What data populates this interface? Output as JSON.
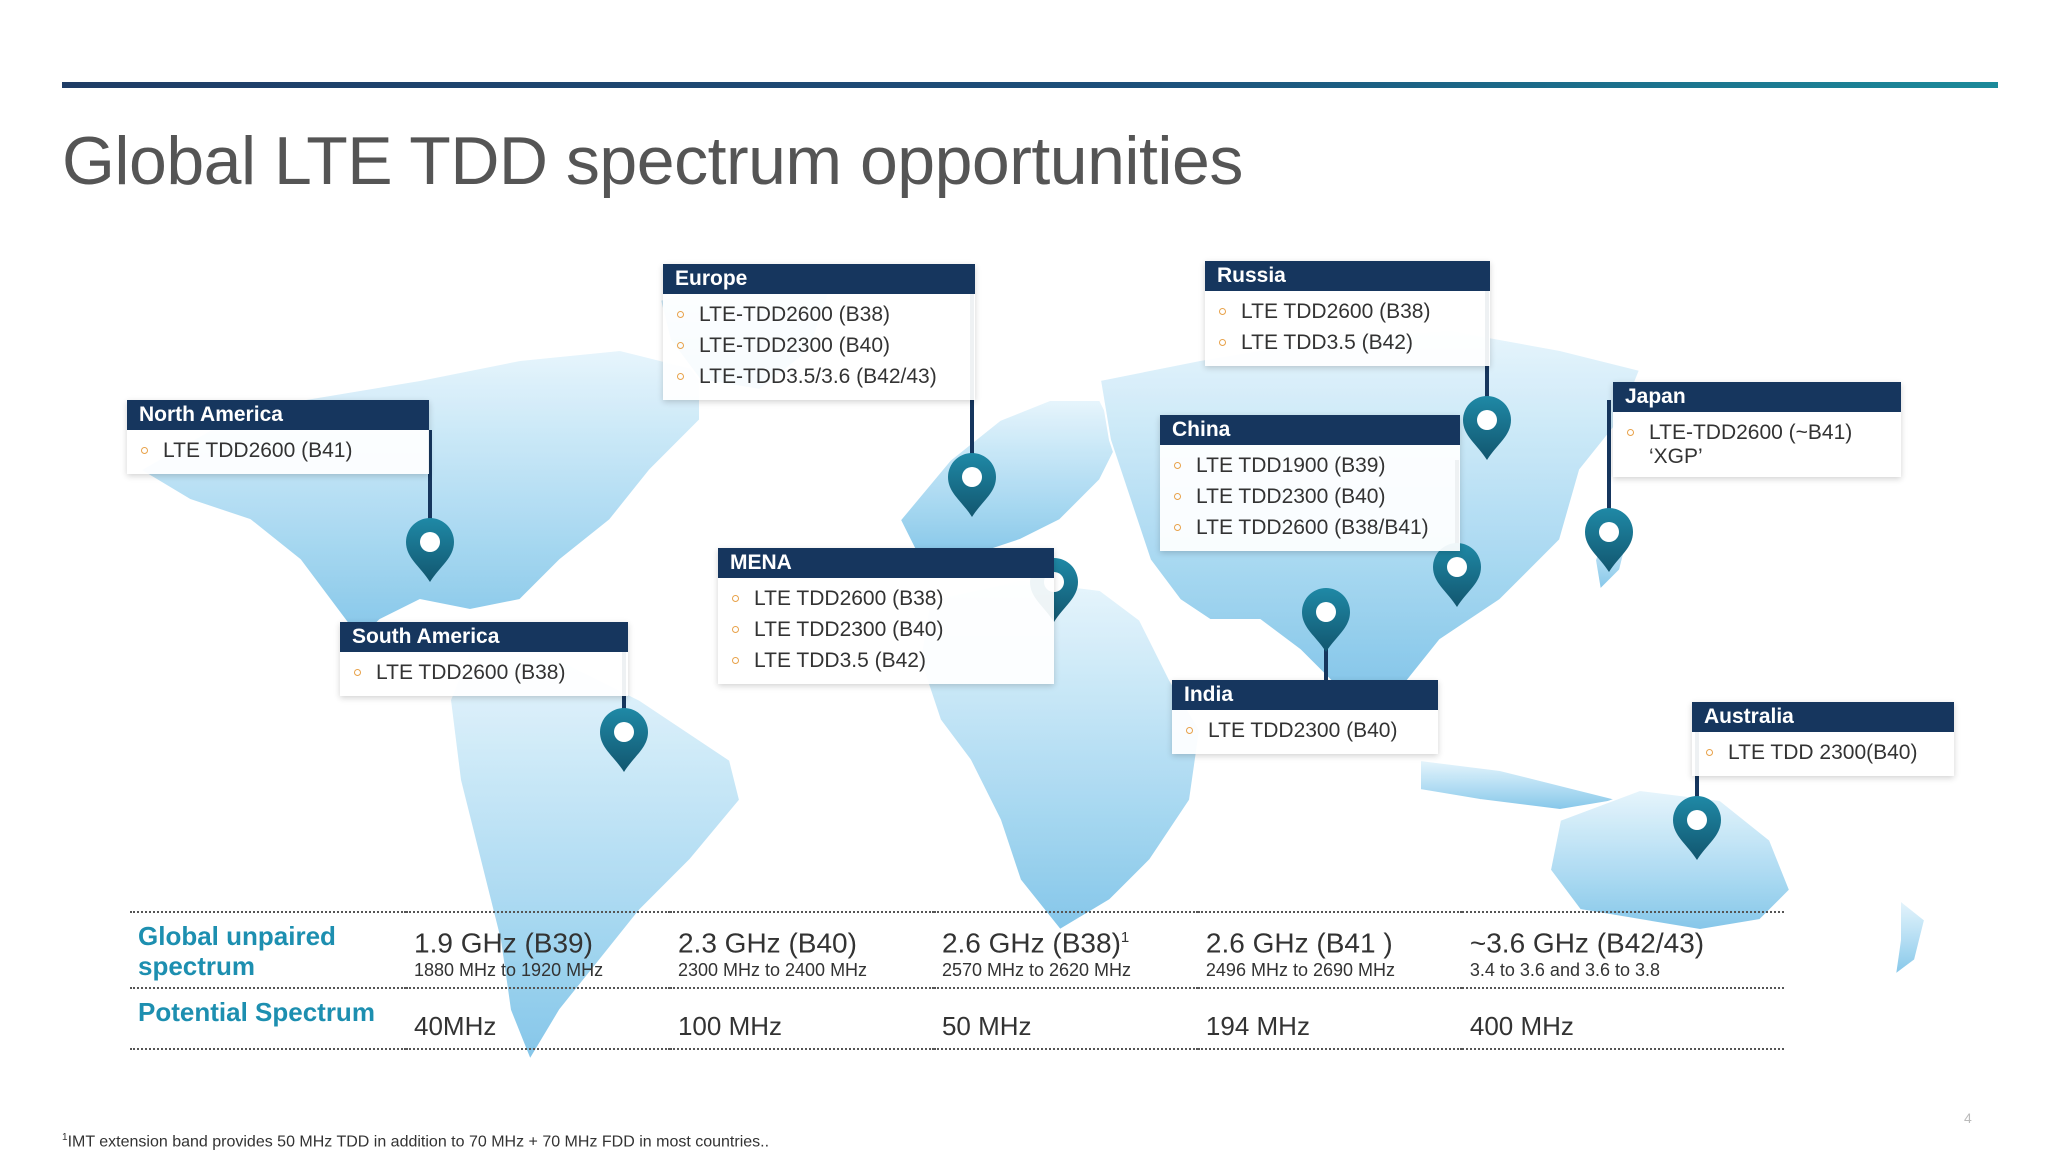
{
  "slide": {
    "title": "Global LTE TDD spectrum opportunities",
    "page_number": "4",
    "footnote_marker": "1",
    "footnote_text": "IMT extension band provides 50 MHz TDD in addition to 70 MHz + 70 MHz FDD in most countries.."
  },
  "colors": {
    "header_bg": "#16365e",
    "pin": "#1b6f8a",
    "accent_label": "#1d8fb0",
    "bullet": "#e8a24a",
    "land": "#a9d9f2"
  },
  "icons": {
    "pin": "map-pin-icon",
    "bullet": "bullet-circle-icon"
  },
  "regions": {
    "north_america": {
      "name": "North America",
      "items": [
        "LTE TDD2600 (B41)"
      ]
    },
    "south_america": {
      "name": "South America",
      "items": [
        "LTE TDD2600 (B38)"
      ]
    },
    "europe": {
      "name": "Europe",
      "items": [
        "LTE-TDD2600 (B38)",
        "LTE-TDD2300 (B40)",
        "LTE-TDD3.5/3.6 (B42/43)"
      ]
    },
    "mena": {
      "name": "MENA",
      "items": [
        "LTE TDD2600 (B38)",
        "LTE TDD2300 (B40)",
        "LTE TDD3.5 (B42)"
      ]
    },
    "russia": {
      "name": "Russia",
      "items": [
        "LTE TDD2600 (B38)",
        "LTE TDD3.5 (B42)"
      ]
    },
    "china": {
      "name": "China",
      "items": [
        "LTE TDD1900 (B39)",
        "LTE TDD2300 (B40)",
        "LTE TDD2600 (B38/B41)"
      ]
    },
    "japan": {
      "name": "Japan",
      "items": [
        "LTE-TDD2600 (~B41)"
      ],
      "sub": "‘XGP’"
    },
    "india": {
      "name": "India",
      "items": [
        "LTE TDD2300 (B40)"
      ]
    },
    "australia": {
      "name": "Australia",
      "items": [
        "LTE TDD 2300(B40)"
      ]
    }
  },
  "table": {
    "row1_label": "Global unpaired spectrum",
    "row2_label": "Potential Spectrum",
    "bands": [
      {
        "name": "1.9 GHz (B39)",
        "sup": "",
        "range": "1880 MHz to 1920 MHz",
        "potential": "40MHz"
      },
      {
        "name": "2.3 GHz (B40)",
        "sup": "",
        "range": "2300 MHz to 2400 MHz",
        "potential": "100 MHz"
      },
      {
        "name": "2.6 GHz (B38)",
        "sup": "1",
        "range": "2570 MHz to 2620 MHz",
        "potential": "50 MHz"
      },
      {
        "name": "2.6 GHz (B41 )",
        "sup": "",
        "range": "2496 MHz to 2690 MHz",
        "potential": "194 MHz"
      },
      {
        "name": "~3.6 GHz (B42/43)",
        "sup": "",
        "range": "3.4 to 3.6 and 3.6 to 3.8",
        "potential": "400 MHz"
      }
    ]
  }
}
